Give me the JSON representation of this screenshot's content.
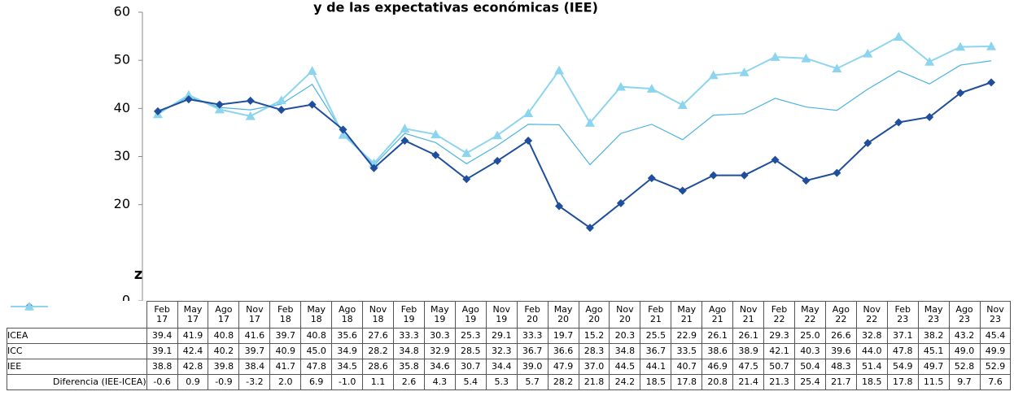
{
  "chart_data": {
    "type": "line",
    "title": "y de las expectativas económicas (IEE)",
    "annotation": "z",
    "categories": [
      "Feb 17",
      "May 17",
      "Ago 17",
      "Nov 17",
      "Feb 18",
      "May 18",
      "Ago 18",
      "Nov 18",
      "Feb 19",
      "May 19",
      "Ago 19",
      "Nov 19",
      "Feb 20",
      "May 20",
      "Ago 20",
      "Nov 20",
      "Feb 21",
      "May 21",
      "Ago 21",
      "Nov 21",
      "Feb 22",
      "May 22",
      "Ago 22",
      "Nov 22",
      "Feb 23",
      "May 23",
      "Ago 23",
      "Nov 23"
    ],
    "ylim": [
      0,
      60
    ],
    "yticks": [
      0,
      20,
      30,
      40,
      50,
      60
    ],
    "series": [
      {
        "name": "ICEA",
        "color": "#1f4e9c",
        "marker": "diamond",
        "values": [
          39.4,
          41.9,
          40.8,
          41.6,
          39.7,
          40.8,
          35.6,
          27.6,
          33.3,
          30.3,
          25.3,
          29.1,
          33.3,
          19.7,
          15.2,
          20.3,
          25.5,
          22.9,
          26.1,
          26.1,
          29.3,
          25.0,
          26.6,
          32.8,
          37.1,
          38.2,
          43.2,
          45.4
        ],
        "value_labels": [
          "39.4",
          "41.9",
          "40.8",
          "41.6",
          "39.7",
          "40.8",
          "35.6",
          "27.6",
          "33.3",
          "30.3",
          "25.3",
          "29.1",
          "33.3",
          "19.7",
          "15.2",
          "20.3",
          "25.5",
          "22.9",
          "26.1",
          "26.1",
          "29.3",
          "25.0",
          "26.6",
          "32.8",
          "37.1",
          "38.2",
          "43.2",
          "45.4"
        ]
      },
      {
        "name": "ICC",
        "color": "#4db3e0",
        "marker": "none",
        "values": [
          39.1,
          42.4,
          40.2,
          39.7,
          40.9,
          45.0,
          34.9,
          28.2,
          34.8,
          32.9,
          28.5,
          32.3,
          36.7,
          36.6,
          28.3,
          34.8,
          36.7,
          33.5,
          38.6,
          38.9,
          42.1,
          40.3,
          39.6,
          44.0,
          47.8,
          45.1,
          49.0,
          49.9
        ],
        "value_labels": [
          "39.1",
          "42.4",
          "40.2",
          "39.7",
          "40.9",
          "45.0",
          "34.9",
          "28.2",
          "34.8",
          "32.9",
          "28.5",
          "32.3",
          "36.7",
          "36.6",
          "28.3",
          "34.8",
          "36.7",
          "33.5",
          "38.6",
          "38.9",
          "42.1",
          "40.3",
          "39.6",
          "44.0",
          "47.8",
          "45.1",
          "49.0",
          "49.9"
        ]
      },
      {
        "name": "IEE",
        "color": "#8dd5ee",
        "marker": "triangle",
        "values": [
          38.8,
          42.8,
          39.8,
          38.4,
          41.7,
          47.8,
          34.5,
          28.6,
          35.8,
          34.6,
          30.7,
          34.4,
          39.0,
          47.9,
          37.0,
          44.5,
          44.1,
          40.7,
          46.9,
          47.5,
          50.7,
          50.4,
          48.3,
          51.4,
          54.9,
          49.7,
          52.8,
          52.9
        ],
        "value_labels": [
          "38.8",
          "42.8",
          "39.8",
          "38.4",
          "41.7",
          "47.8",
          "34.5",
          "28.6",
          "35.8",
          "34.6",
          "30.7",
          "34.4",
          "39.0",
          "47.9",
          "37.0",
          "44.5",
          "44.1",
          "40.7",
          "46.9",
          "47.5",
          "50.7",
          "50.4",
          "48.3",
          "51.4",
          "54.9",
          "49.7",
          "52.8",
          "52.9"
        ]
      }
    ],
    "difference": {
      "name": "Diferencia (IEE-ICEA)",
      "values": [
        -0.6,
        0.9,
        -0.9,
        -3.2,
        2.0,
        6.9,
        -1.0,
        1.1,
        2.6,
        4.3,
        5.4,
        5.3,
        5.7,
        28.2,
        21.8,
        24.2,
        18.5,
        17.8,
        20.8,
        21.4,
        21.3,
        25.4,
        21.7,
        18.5,
        17.8,
        11.5,
        9.7,
        7.6
      ],
      "value_labels": [
        "-0.6",
        "0.9",
        "-0.9",
        "-3.2",
        "2.0",
        "6.9",
        "-1.0",
        "1.1",
        "2.6",
        "4.3",
        "5.4",
        "5.3",
        "5.7",
        "28.2",
        "21.8",
        "24.2",
        "18.5",
        "17.8",
        "20.8",
        "21.4",
        "21.3",
        "25.4",
        "21.7",
        "18.5",
        "17.8",
        "11.5",
        "9.7",
        "7.6"
      ]
    }
  }
}
